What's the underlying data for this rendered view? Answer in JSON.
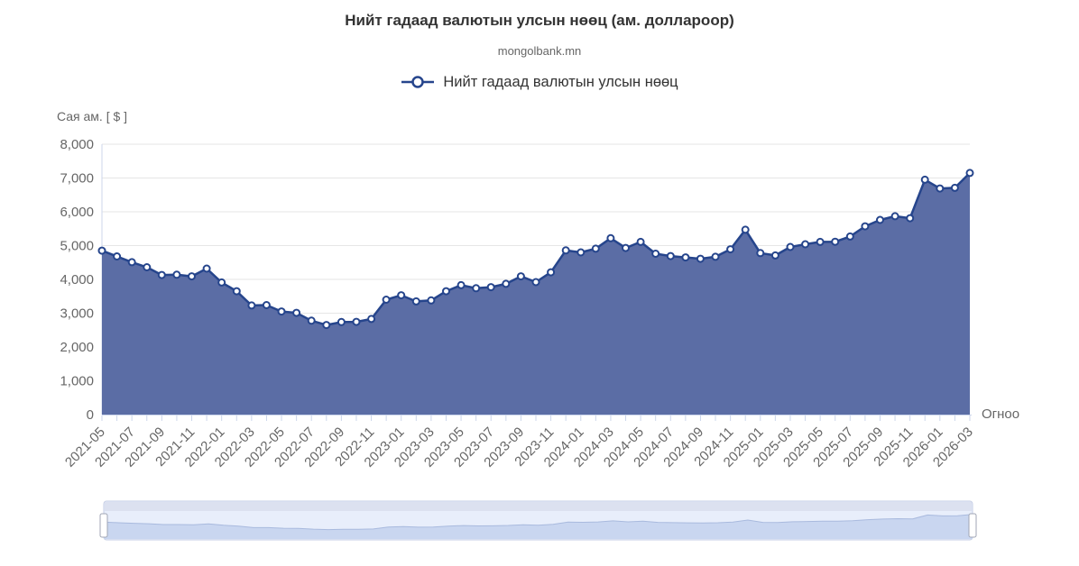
{
  "header": {
    "title": "Нийт гадаад валютын улсын нөөц (ам. доллароор)",
    "subtitle": "mongolbank.mn"
  },
  "legend": {
    "label": "Нийт гадаад валютын улсын нөөц"
  },
  "chart_data": {
    "type": "area",
    "title": "Нийт гадаад валютын улсын нөөц (ам. доллароор)",
    "subtitle": "mongolbank.mn",
    "series_name": "Нийт гадаад валютын улсын нөөц",
    "yaxis_title": "Сая ам. [ $ ]",
    "xaxis_title": "Огноо",
    "ylim": [
      0,
      8000
    ],
    "ytick_step": 1000,
    "grid": true,
    "legend_position": "top",
    "xlabel_every": 2,
    "has_navigator": true,
    "categories": [
      "2021-05",
      "2021-06",
      "2021-07",
      "2021-08",
      "2021-09",
      "2021-10",
      "2021-11",
      "2021-12",
      "2022-01",
      "2022-02",
      "2022-03",
      "2022-04",
      "2022-05",
      "2022-06",
      "2022-07",
      "2022-08",
      "2022-09",
      "2022-10",
      "2022-11",
      "2022-12",
      "2023-01",
      "2023-02",
      "2023-03",
      "2023-04",
      "2023-05",
      "2023-06",
      "2023-07",
      "2023-08",
      "2023-09",
      "2023-10",
      "2023-11",
      "2023-12",
      "2024-01",
      "2024-02",
      "2024-03",
      "2024-04",
      "2024-05",
      "2024-06",
      "2024-07",
      "2024-08",
      "2024-09",
      "2024-10",
      "2024-11",
      "2024-12",
      "2025-01",
      "2025-02",
      "2025-03",
      "2025-04",
      "2025-05",
      "2025-06",
      "2025-07",
      "2025-08",
      "2025-09",
      "2025-10",
      "2025-11",
      "2025-12",
      "2026-01",
      "2026-02",
      "2026-03"
    ],
    "values": [
      4850,
      4680,
      4510,
      4360,
      4130,
      4140,
      4090,
      4320,
      3910,
      3650,
      3230,
      3240,
      3050,
      3010,
      2780,
      2650,
      2740,
      2745,
      2830,
      3400,
      3530,
      3350,
      3380,
      3650,
      3830,
      3740,
      3770,
      3870,
      4090,
      3920,
      4210,
      4860,
      4800,
      4910,
      5220,
      4930,
      5110,
      4760,
      4690,
      4650,
      4610,
      4670,
      4890,
      5470,
      4780,
      4710,
      4960,
      5040,
      5110,
      5115,
      5270,
      5570,
      5760,
      5870,
      5810,
      6950,
      6690,
      6710,
      7150
    ],
    "colors": {
      "line": "#26458c",
      "fill": "#5b6da5",
      "marker_fill": "#ffffff",
      "grid": "#e6e6e6",
      "axis": "#ccd6eb",
      "label": "#666666",
      "title": "#333333",
      "navigator_bg": "#e8eefb",
      "navigator_fill": "#c9d6f0",
      "navigator_line": "#a9bade",
      "scrollbar_track": "#dce1f0",
      "handle_border": "#a0a6b5"
    }
  }
}
